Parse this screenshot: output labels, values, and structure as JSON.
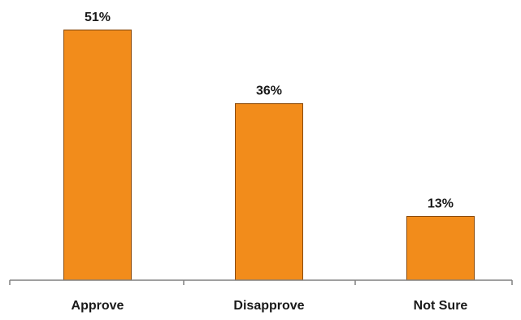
{
  "chart_data": {
    "type": "bar",
    "title": "",
    "xlabel": "",
    "ylabel": "",
    "categories": [
      "Approve",
      "Disapprove",
      "Not Sure"
    ],
    "values": [
      51,
      36,
      13
    ],
    "value_labels": [
      "51%",
      "36%",
      "13%"
    ],
    "ylim": [
      0,
      55
    ],
    "grid": false,
    "legend": "none",
    "colors": {
      "bar_fill": "#F28C1B",
      "bar_stroke": "#8A4A0A",
      "axis": "#808080",
      "text": "#1a1a1a"
    }
  }
}
